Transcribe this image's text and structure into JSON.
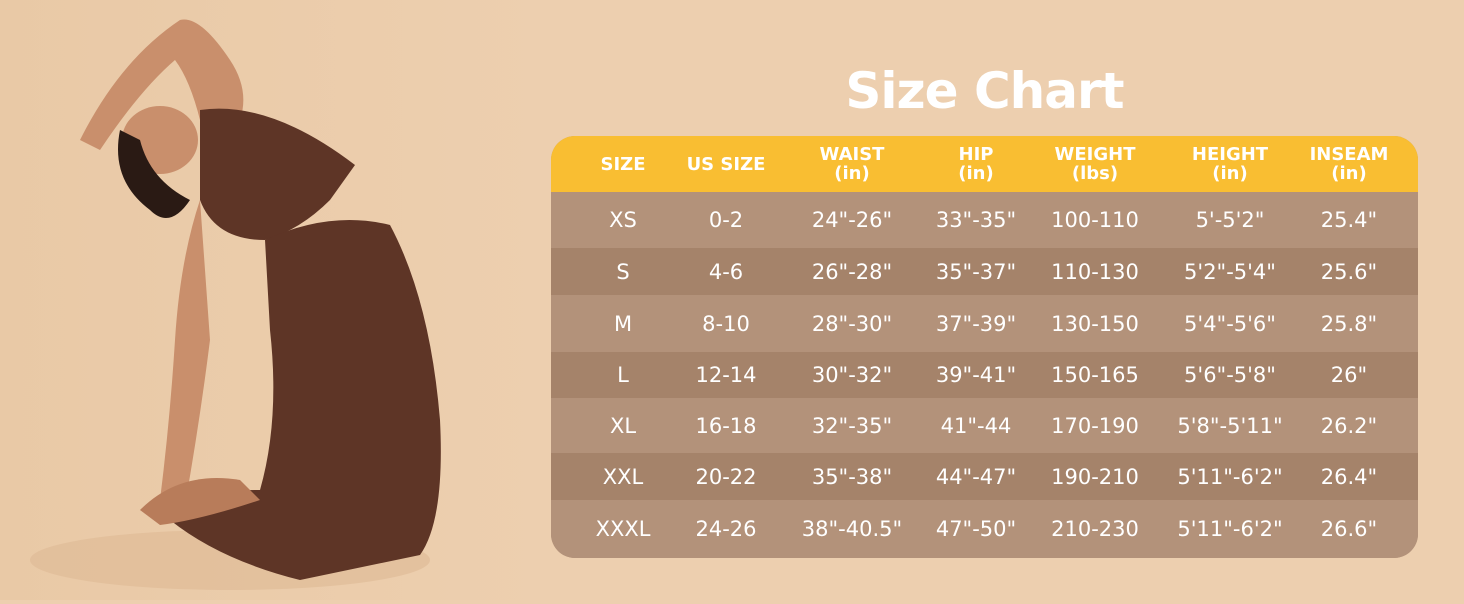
{
  "title": "Size Chart",
  "colors": {
    "background": "#EDCFAF",
    "header": "#F9BE32",
    "row_light": "#B3927A",
    "row_dark": "#A5836A",
    "text": "#FFFFFF"
  },
  "headers": [
    {
      "label": "SIZE",
      "unit": ""
    },
    {
      "label": "US SIZE",
      "unit": ""
    },
    {
      "label": "WAIST",
      "unit": "(in)"
    },
    {
      "label": "HIP",
      "unit": "(in)"
    },
    {
      "label": "WEIGHT",
      "unit": "(lbs)"
    },
    {
      "label": "HEIGHT",
      "unit": "(in)"
    },
    {
      "label": "INSEAM",
      "unit": "(in)"
    }
  ],
  "rows": [
    [
      "XS",
      "0-2",
      "24\"-26\"",
      "33\"-35\"",
      "100-110",
      "5'-5'2\"",
      "25.4\""
    ],
    [
      "S",
      "4-6",
      "26\"-28\"",
      "35\"-37\"",
      "110-130",
      "5'2\"-5'4\"",
      "25.6\""
    ],
    [
      "M",
      "8-10",
      "28\"-30\"",
      "37\"-39\"",
      "130-150",
      "5'4\"-5'6\"",
      "25.8\""
    ],
    [
      "L",
      "12-14",
      "30\"-32\"",
      "39\"-41\"",
      "150-165",
      "5'6\"-5'8\"",
      "26\""
    ],
    [
      "XL",
      "16-18",
      "32\"-35\"",
      "41\"-44",
      "170-190",
      "5'8\"-5'11\"",
      "26.2\""
    ],
    [
      "XXL",
      "20-22",
      "35\"-38\"",
      "44\"-47\"",
      "190-210",
      "5'11\"-6'2\"",
      "26.4\""
    ],
    [
      "XXXL",
      "24-26",
      "38\"-40.5\"",
      "47\"-50\"",
      "210-230",
      "5'11\"-6'2\"",
      "26.6\""
    ]
  ]
}
